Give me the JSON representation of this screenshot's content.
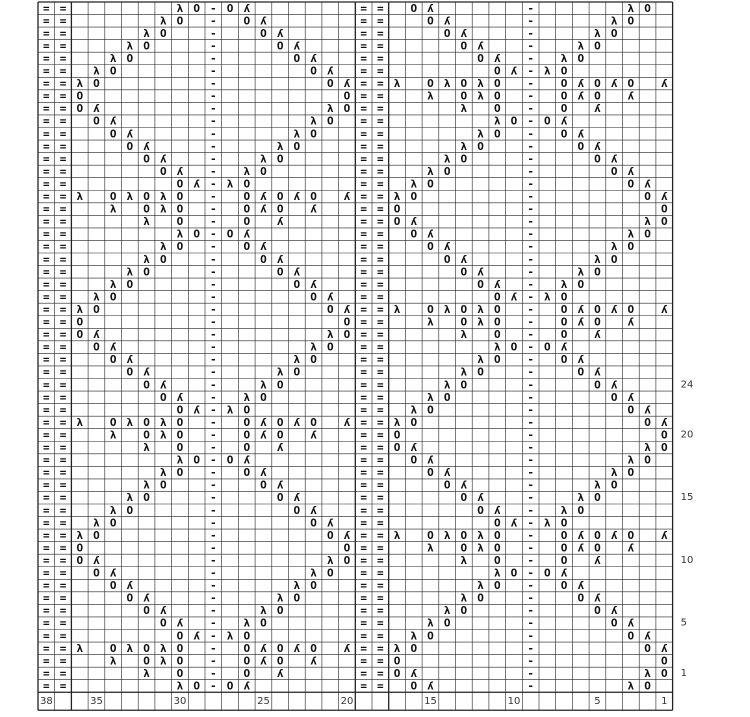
{
  "chart": {
    "rows": [
      "==      λO-Oʎ      == Oʎ     -     λO ",
      "==     λO - Oʎ     ==  Oʎ    -    λO  ",
      "==    λO  -  Oʎ    ==   Oʎ   -   λO   ",
      "==   λO   -   Oʎ   ==    Oʎ  -  λO    ",
      "==  λO    -    Oʎ  ==     Oʎ - λO     ",
      "== λO     -     Oʎ ==      Oʎ-λO      ",
      "==λO      -      Oʎ==λ OλOλO - OʎOʎO ʎ",
      "==O       -       O==  λ OλO - OʎO ʎ  ",
      "==Oʎ      -      λO==    λ O - O ʎ    ",
      "== Oʎ     -     λO ==      λO-Oʎ      ",
      "==  Oʎ    -    λO  ==     λO - Oʎ     ",
      "==   Oʎ   -   λO   ==    λO  -  Oʎ    ",
      "==    Oʎ  -  λO    ==   λO   -   Oʎ   ",
      "==     Oʎ - λO     ==  λO    -    Oʎ  ",
      "==      Oʎ-λO      == λO     -     Oʎ ",
      "==λ OλOλO - OʎOʎO ʎ==λO      -      Oʎ",
      "==  λ OλO - OʎO ʎ  ==O       -       O",
      "==    λ O - O ʎ    ==Oʎ      -      λO",
      "==      λO-Oʎ      == Oʎ     -     λO ",
      "==     λO - Oʎ     ==  Oʎ    -    λO  ",
      "==    λO  -  Oʎ    ==   Oʎ   -   λO   ",
      "==   λO   -   Oʎ   ==    Oʎ  -  λO    ",
      "==  λO    -    Oʎ  ==     Oʎ - λO     ",
      "== λO     -     Oʎ ==      Oʎ-λO      ",
      "==λO      -      Oʎ==λ OλOλO - OʎOʎO ʎ",
      "==O       -       O==  λ OλO - OʎO ʎ  ",
      "==Oʎ      -      λO==    λ O - O ʎ    ",
      "== Oʎ     -     λO ==      λO-Oʎ      ",
      "==  Oʎ    -    λO  ==     λO - Oʎ     ",
      "==   Oʎ   -   λO   ==    λO  -  Oʎ    ",
      "==    Oʎ  -  λO    ==   λO   -   Oʎ   ",
      "==     Oʎ - λO     ==  λO    -    Oʎ  ",
      "==      Oʎ-λO      == λO     -     Oʎ ",
      "==λ OλOλO - OʎOʎO ʎ==λO      -      Oʎ",
      "==  λ OλO - OʎO ʎ  ==O       -       O",
      "==    λ O - O ʎ    ==Oʎ      -      λO",
      "==      λO-Oʎ      == Oʎ     -     λO ",
      "==     λO - Oʎ     ==  Oʎ    -    λO  ",
      "==    λO  -  Oʎ    ==   Oʎ   -   λO   ",
      "==   λO   -   Oʎ   ==    Oʎ  -  λO    ",
      "==  λO    -    Oʎ  ==     Oʎ - λO     ",
      "== λO     -     Oʎ ==      Oʎ-λO      ",
      "==λO      -      Oʎ==λ OλOλO - OʎOʎO ʎ",
      "==O       -       O==  λ OλO - OʎO ʎ  ",
      "==Oʎ      -      λO==    λ O - O ʎ    ",
      "== Oʎ     -     λO ==      λO-Oʎ      ",
      "==  Oʎ    -    λO  ==     λO - Oʎ     ",
      "==   Oʎ   -   λO   ==    λO  -  Oʎ    ",
      "==    Oʎ  -  λO    ==   λO   -   Oʎ   ",
      "==     Oʎ - λO     ==  λO    -    Oʎ  ",
      "==      Oʎ-λO      == λO     -     Oʎ ",
      "==λ OλOλO - OʎOʎO ʎ==λO      -      Oʎ",
      "==  λ OλO - OʎO ʎ  ==O       -       O",
      "==    λ O - O ʎ    ==Oʎ      -      λO",
      "==      λO-Oʎ      == Oʎ     -     λO "
    ],
    "column_numbers": [
      38,
      35,
      30,
      25,
      20,
      15,
      10,
      5,
      1
    ],
    "row_numbers": [
      1,
      5,
      10,
      15,
      20,
      24
    ]
  }
}
